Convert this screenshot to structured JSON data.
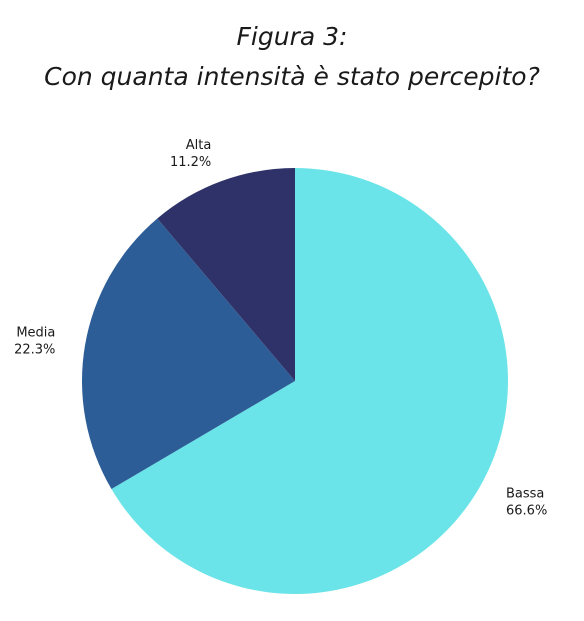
{
  "chart_data": {
    "type": "pie",
    "title": [
      "Figura 3:",
      "Con quanta intensità è stato percepito?"
    ],
    "slices": [
      {
        "label": "Bassa",
        "value": 66.6,
        "value_label": "66.6%",
        "color": "#6ae4e8"
      },
      {
        "label": "Media",
        "value": 22.3,
        "value_label": "22.3%",
        "color": "#2d5d97"
      },
      {
        "label": "Alta",
        "value": 11.2,
        "value_label": "11.2%",
        "color": "#2e3268"
      }
    ],
    "start": "12 o'clock",
    "direction": "clockwise",
    "legend": "none"
  }
}
